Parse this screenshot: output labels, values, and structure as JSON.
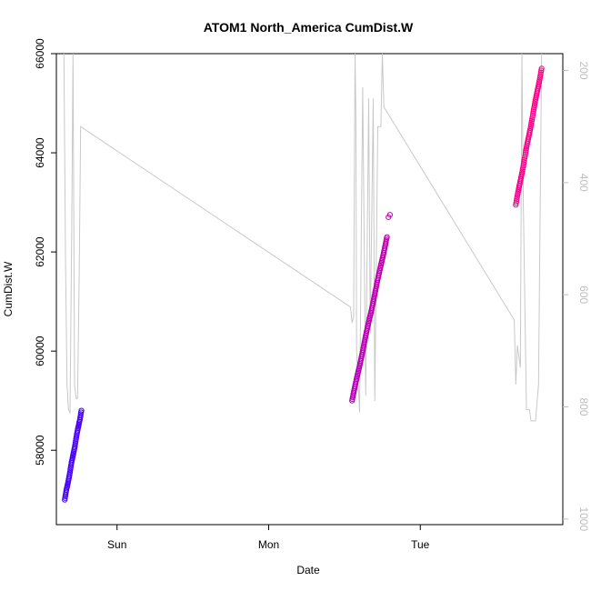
{
  "chart_data": {
    "type": "scatter",
    "title": "ATOM1 North_America CumDist.W",
    "xlabel": "Date",
    "ylabel": "CumDist.W",
    "x_ticks": [
      "Sun",
      "Mon",
      "Tue"
    ],
    "x_tick_days": [
      1,
      2,
      3
    ],
    "xlim_days": [
      0.6,
      3.94
    ],
    "ylim": [
      56500,
      66000
    ],
    "y_ticks": [
      58000,
      60000,
      62000,
      64000,
      66000
    ],
    "y2_ticks": [
      200,
      400,
      600,
      800,
      1000
    ],
    "y2lim": [
      1010,
      170
    ],
    "colors": {
      "line": "#c8c8c8",
      "points_start": "#4400ff",
      "points_end": "#ff0088",
      "right_axis": "#bdbdbd"
    },
    "points_segments": [
      {
        "x_start": 0.655,
        "x_end": 0.765,
        "y_start": 57000,
        "y_end": 58800,
        "n": 60
      },
      {
        "x_start": 2.55,
        "x_end": 2.78,
        "y_start": 59000,
        "y_end": 62300,
        "n": 110
      },
      {
        "x_start": 3.63,
        "x_end": 3.8,
        "y_start": 62950,
        "y_end": 65700,
        "n": 80
      }
    ],
    "outlier_points": [
      {
        "x": 2.79,
        "y": 62700
      },
      {
        "x": 2.8,
        "y": 62750
      }
    ],
    "line_series": {
      "name": "",
      "axis": "right",
      "points": [
        [
          0.65,
          170
        ],
        [
          0.66,
          530
        ],
        [
          0.67,
          760
        ],
        [
          0.68,
          805
        ],
        [
          0.69,
          810
        ],
        [
          0.7,
          520
        ],
        [
          0.71,
          170
        ],
        [
          0.72,
          760
        ],
        [
          0.73,
          785
        ],
        [
          0.74,
          785
        ],
        [
          0.75,
          580
        ],
        [
          0.76,
          300
        ],
        [
          2.54,
          622
        ],
        [
          2.55,
          650
        ],
        [
          2.56,
          640
        ],
        [
          2.57,
          170
        ],
        [
          2.575,
          280
        ],
        [
          2.58,
          700
        ],
        [
          2.6,
          810
        ],
        [
          2.62,
          230
        ],
        [
          2.64,
          780
        ],
        [
          2.66,
          250
        ],
        [
          2.67,
          670
        ],
        [
          2.69,
          250
        ],
        [
          2.7,
          790
        ],
        [
          2.72,
          300
        ],
        [
          2.74,
          300
        ],
        [
          2.75,
          170
        ],
        [
          2.76,
          265
        ],
        [
          3.62,
          645
        ],
        [
          3.63,
          760
        ],
        [
          3.64,
          690
        ],
        [
          3.66,
          730
        ],
        [
          3.67,
          170
        ],
        [
          3.68,
          440
        ],
        [
          3.7,
          805
        ],
        [
          3.72,
          805
        ],
        [
          3.73,
          825
        ],
        [
          3.76,
          825
        ],
        [
          3.78,
          760
        ],
        [
          3.8,
          170
        ]
      ]
    }
  }
}
